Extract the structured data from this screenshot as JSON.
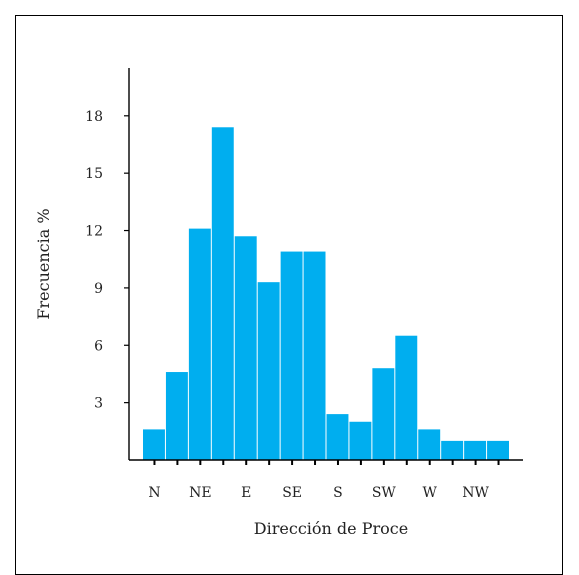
{
  "chart_data": {
    "type": "bar",
    "xlabel": "Dirección de Proce",
    "ylabel": "Frecuencia %",
    "ylim": [
      0,
      20.5
    ],
    "yticks": [
      3,
      6,
      9,
      12,
      15,
      18
    ],
    "x_tick_labels": [
      "N",
      "NE",
      "E",
      "SE",
      "S",
      "SW",
      "W",
      "NW"
    ],
    "bar_color": "#00AEEF",
    "bins": 16,
    "values": [
      1.6,
      4.6,
      12.1,
      17.4,
      11.7,
      9.3,
      10.9,
      10.9,
      2.4,
      2.0,
      4.8,
      6.5,
      1.6,
      1.0,
      1.0,
      1.0
    ]
  }
}
